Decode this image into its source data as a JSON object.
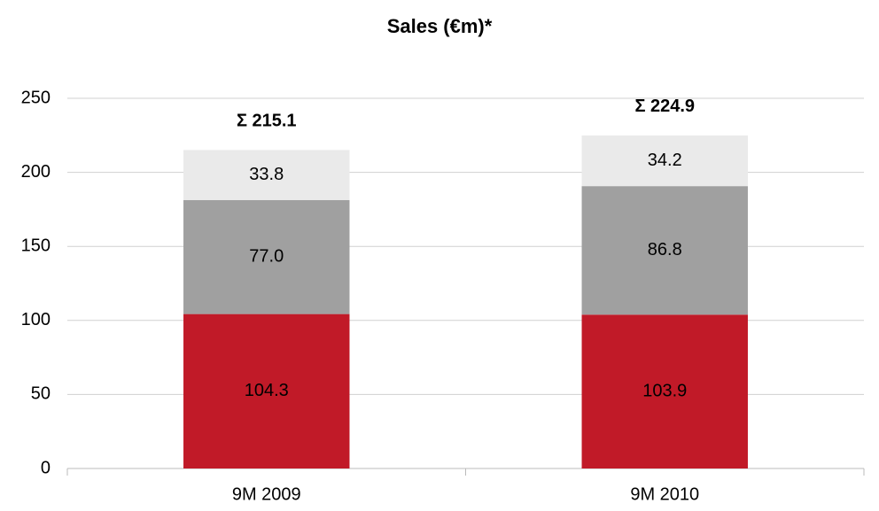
{
  "chart_data": {
    "type": "stacked_bar",
    "title": "Sales (€m)*",
    "categories": [
      "9M 2009",
      "9M 2010"
    ],
    "series": [
      {
        "color": "#c11a28",
        "values": [
          104.3,
          103.9
        ]
      },
      {
        "color": "#a0a0a0",
        "values": [
          77,
          86.8
        ],
        "value_labels": [
          "77.0",
          "86.8"
        ]
      },
      {
        "color": "#eaeaea",
        "values": [
          33.8,
          34.2
        ]
      }
    ],
    "annotations": [
      "Σ 215.1",
      "Σ 224.9"
    ],
    "ylim": [
      0,
      250
    ],
    "yticks": [
      0,
      50,
      100,
      150,
      200,
      250
    ],
    "grid": true
  }
}
